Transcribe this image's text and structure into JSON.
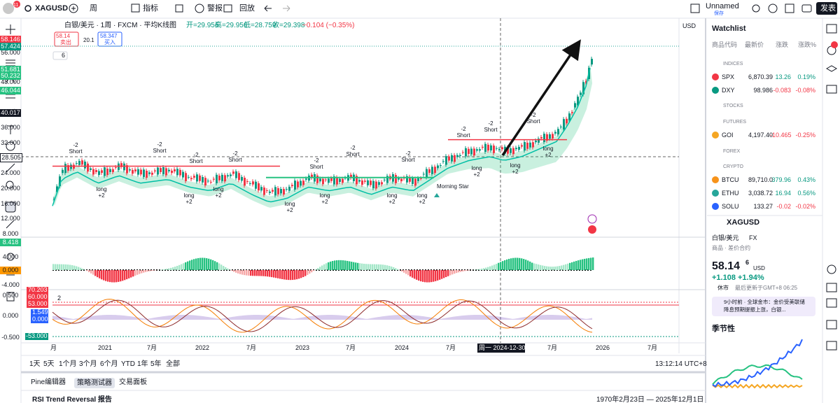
{
  "toolbar": {
    "badge": "11",
    "symbol": "XAGUSD",
    "interval": "周",
    "indicators": "指标",
    "alert": "警报",
    "replay": "回放",
    "layout_name": "Unnamed",
    "save": "保存",
    "publish": "发表"
  },
  "chart": {
    "title": "白银/美元 · 1周 · FXCM · 平均K线图",
    "ohlc": [
      "开=29.956",
      "高=29.956",
      "低=28.759",
      "收=29.398"
    ],
    "change": "−0.104 (−0.35%)",
    "sell_price": "58.14",
    "sell": "卖出",
    "spread": "20.1",
    "buy_price": "58.347",
    "buy": "买入",
    "indicator_count": "6",
    "currency": "USD",
    "price_axis": [
      "56.000",
      "48.000",
      "36.000",
      "32.000",
      "24.000",
      "20.000",
      "16.000",
      "12.000",
      "8.000"
    ],
    "price_badges": [
      "58.146",
      "57.424",
      "51.681",
      "50.232",
      "46.044",
      "40.017",
      "28.505"
    ],
    "osc_axis": [
      "8.418",
      "4.000",
      "0.000",
      "-4.000"
    ],
    "rsi_axis": [
      "0.500",
      "0.000",
      "-0.500"
    ],
    "rsi_left": [
      "70.203",
      "60.000",
      "53.000",
      "1.549",
      "0.000",
      "-53.000"
    ],
    "rsi_count": "2",
    "time_axis": [
      "月",
      "2021",
      "7月",
      "2022",
      "7月",
      "2023",
      "7月",
      "2024",
      "7月",
      "7月",
      "2026",
      "7月"
    ],
    "crosshair_date": "周一 2024-12-30",
    "short_signals": [
      [
        "-2",
        "Short"
      ],
      [
        "-2",
        "Short"
      ],
      [
        "-2",
        "Short"
      ],
      [
        "-2",
        "Short"
      ],
      [
        "-2",
        "Short"
      ],
      [
        "-2",
        "Short"
      ],
      [
        "-2",
        "Short"
      ],
      [
        "-2",
        "Short"
      ],
      [
        "-2",
        "Short"
      ],
      [
        "-2",
        "Short"
      ]
    ],
    "long_signals": [
      [
        "long",
        "+2"
      ],
      [
        "long",
        "+2"
      ],
      [
        "long",
        "+2"
      ],
      [
        "long",
        "+2"
      ],
      [
        "long",
        "+2"
      ],
      [
        "long",
        "+2"
      ],
      [
        "long",
        "+2"
      ],
      [
        "long",
        "+2"
      ],
      [
        "long",
        "+2"
      ],
      [
        "long",
        "+2"
      ]
    ],
    "pattern": "Morning Star"
  },
  "bottom": {
    "ranges": [
      "1天",
      "5天",
      "1个月",
      "3个月",
      "6个月",
      "YTD",
      "1年",
      "5年",
      "全部"
    ],
    "clock": "13:12:14 UTC+8",
    "tabs": [
      "Pine编辑器",
      "策略测试器",
      "交易面板"
    ],
    "report": "RSI Trend Reversal 报告",
    "date_range": "1970年2月23日 — 2025年12月1日"
  },
  "watchlist": {
    "title": "Watchlist",
    "columns": [
      "商品代码",
      "最新价",
      "涨跌",
      "涨跌%"
    ],
    "rows": [
      {
        "section": "INDICES"
      },
      {
        "symbol": "SPX",
        "last": "6,870.39",
        "change": "13.26",
        "change_pct": "0.19%"
      },
      {
        "symbol": "DXY",
        "last": "98.986",
        "change": "-0.083",
        "change_pct": "-0.08%"
      },
      {
        "section": "STOCKS"
      },
      {
        "section": "FUTURES"
      },
      {
        "symbol": "GOI",
        "last": "4,197.40",
        "change": "-10.465",
        "change_pct": "-0.25%"
      },
      {
        "section": "FOREX"
      },
      {
        "section": "CRYPTO"
      },
      {
        "symbol": "BTCU",
        "last": "89,710.0",
        "change": "379.96",
        "change_pct": "0.43%"
      },
      {
        "symbol": "ETHU",
        "last": "3,038.72",
        "change": "16.94",
        "change_pct": "0.56%"
      },
      {
        "symbol": "SOLU",
        "last": "133.27",
        "change": "-0.02",
        "change_pct": "-0.02%"
      }
    ]
  },
  "details": {
    "symbol": "XAGUSD",
    "name": "白银/美元",
    "exchange": "FX",
    "type": "商品 · 差价合约",
    "price": "58.14",
    "price_sup": "6",
    "currency": "USD",
    "change": "+1.108",
    "change_pct": "+1.94%",
    "status": "休市",
    "updated": "最后更新于GMT+8 06:25",
    "news": "9小时前 · 全球金市：金价受美联储降息预期提振上涨，白银...",
    "seasonality": "季节性"
  }
}
